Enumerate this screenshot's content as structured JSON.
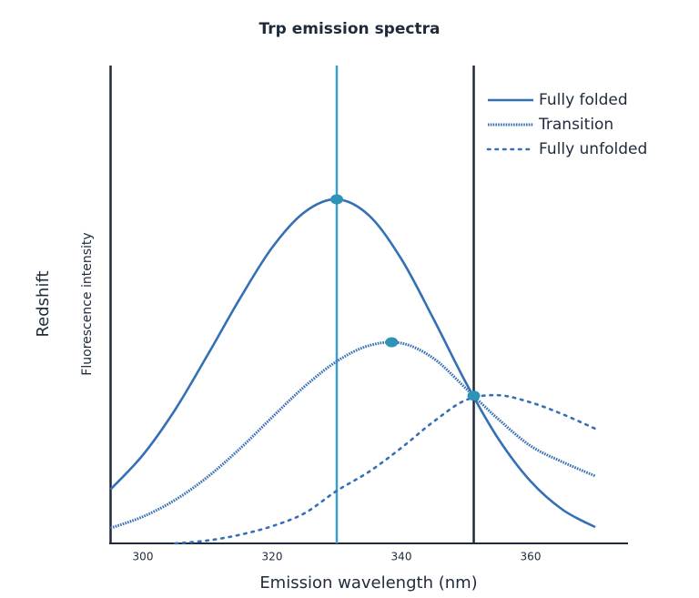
{
  "chart_data": {
    "type": "line",
    "title": "Trp emission spectra",
    "xlabel": "Emission wavelength (nm)",
    "ylabel": "Fluorescence intensity",
    "outer_ylabel": "Redshift",
    "x": [
      295,
      300,
      305,
      310,
      315,
      320,
      325,
      330,
      335,
      340,
      345,
      350,
      355,
      360,
      365,
      370
    ],
    "series": [
      {
        "name": "Fully folded",
        "color": "#3570b6",
        "dash": "solid",
        "values": [
          11.3,
          18.5,
          28.0,
          39.4,
          51.2,
          61.9,
          69.3,
          72.0,
          68.6,
          59.5,
          46.9,
          33.6,
          21.9,
          13.0,
          7.0,
          3.4
        ]
      },
      {
        "name": "Transition",
        "color": "#3570b6",
        "dash": "dense-dot",
        "values": [
          3.2,
          5.6,
          9.1,
          13.9,
          19.8,
          26.4,
          32.8,
          38.1,
          41.4,
          41.9,
          38.7,
          32.4,
          26.0,
          20.4,
          17.0,
          14.1
        ]
      },
      {
        "name": "Fully unfolded",
        "color": "#3570b6",
        "dash": "dot",
        "values": [
          null,
          null,
          0,
          0.6,
          1.8,
          3.6,
          6.3,
          11.0,
          15.0,
          20.0,
          25.5,
          30.0,
          31.0,
          29.5,
          27.0,
          24.0
        ]
      }
    ],
    "vlines": [
      {
        "x": 330,
        "color": "#3a9fc9"
      },
      {
        "x": 351.2,
        "color": "#1f2a3a"
      }
    ],
    "markers": [
      {
        "x": 330,
        "y": 72.0
      },
      {
        "x": 338.5,
        "y": 42.1
      },
      {
        "x": 351.2,
        "y": 30.9
      }
    ],
    "marker_color": "#2f93b8",
    "xlim": [
      295,
      375
    ],
    "xticks": [
      300,
      320,
      340,
      360
    ],
    "ylim": [
      0,
      100
    ],
    "legend": "top-right"
  }
}
